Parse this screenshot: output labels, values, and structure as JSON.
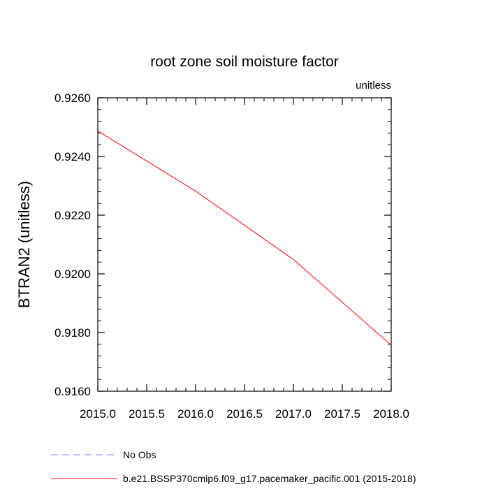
{
  "chart_data": {
    "type": "line",
    "title": "root zone soil moisture factor",
    "units_label": "unitless",
    "xlabel": "",
    "ylabel": "BTRAN2  (unitless)",
    "xlim": [
      2015.0,
      2018.0
    ],
    "ylim": [
      0.916,
      0.926
    ],
    "x_ticks": [
      2015.0,
      2015.5,
      2016.0,
      2016.5,
      2017.0,
      2017.5,
      2018.0
    ],
    "x_tick_labels": [
      "2015.0",
      "2015.5",
      "2016.0",
      "2016.5",
      "2017.0",
      "2017.5",
      "2018.0"
    ],
    "y_ticks": [
      0.916,
      0.918,
      0.92,
      0.922,
      0.924,
      0.926
    ],
    "y_tick_labels": [
      "0.9160",
      "0.9180",
      "0.9200",
      "0.9220",
      "0.9240",
      "0.9260"
    ],
    "grid": false,
    "series": [
      {
        "name": "b.e21.BSSP370cmip6.f09_g17.pacemaker_pacific.001 (2015-2018)",
        "color": "#ff0000",
        "dash": "solid",
        "x": [
          2015.0,
          2016.0,
          2017.0,
          2018.0
        ],
        "y": [
          0.92487,
          0.92282,
          0.92049,
          0.91757
        ]
      }
    ],
    "legend": [
      {
        "label": "No Obs",
        "color": "#8080ff",
        "dash": "dashed"
      },
      {
        "label": "b.e21.BSSP370cmip6.f09_g17.pacemaker_pacific.001 (2015-2018)",
        "color": "#ff0000",
        "dash": "solid"
      }
    ],
    "legend_position": "bottom-left"
  }
}
